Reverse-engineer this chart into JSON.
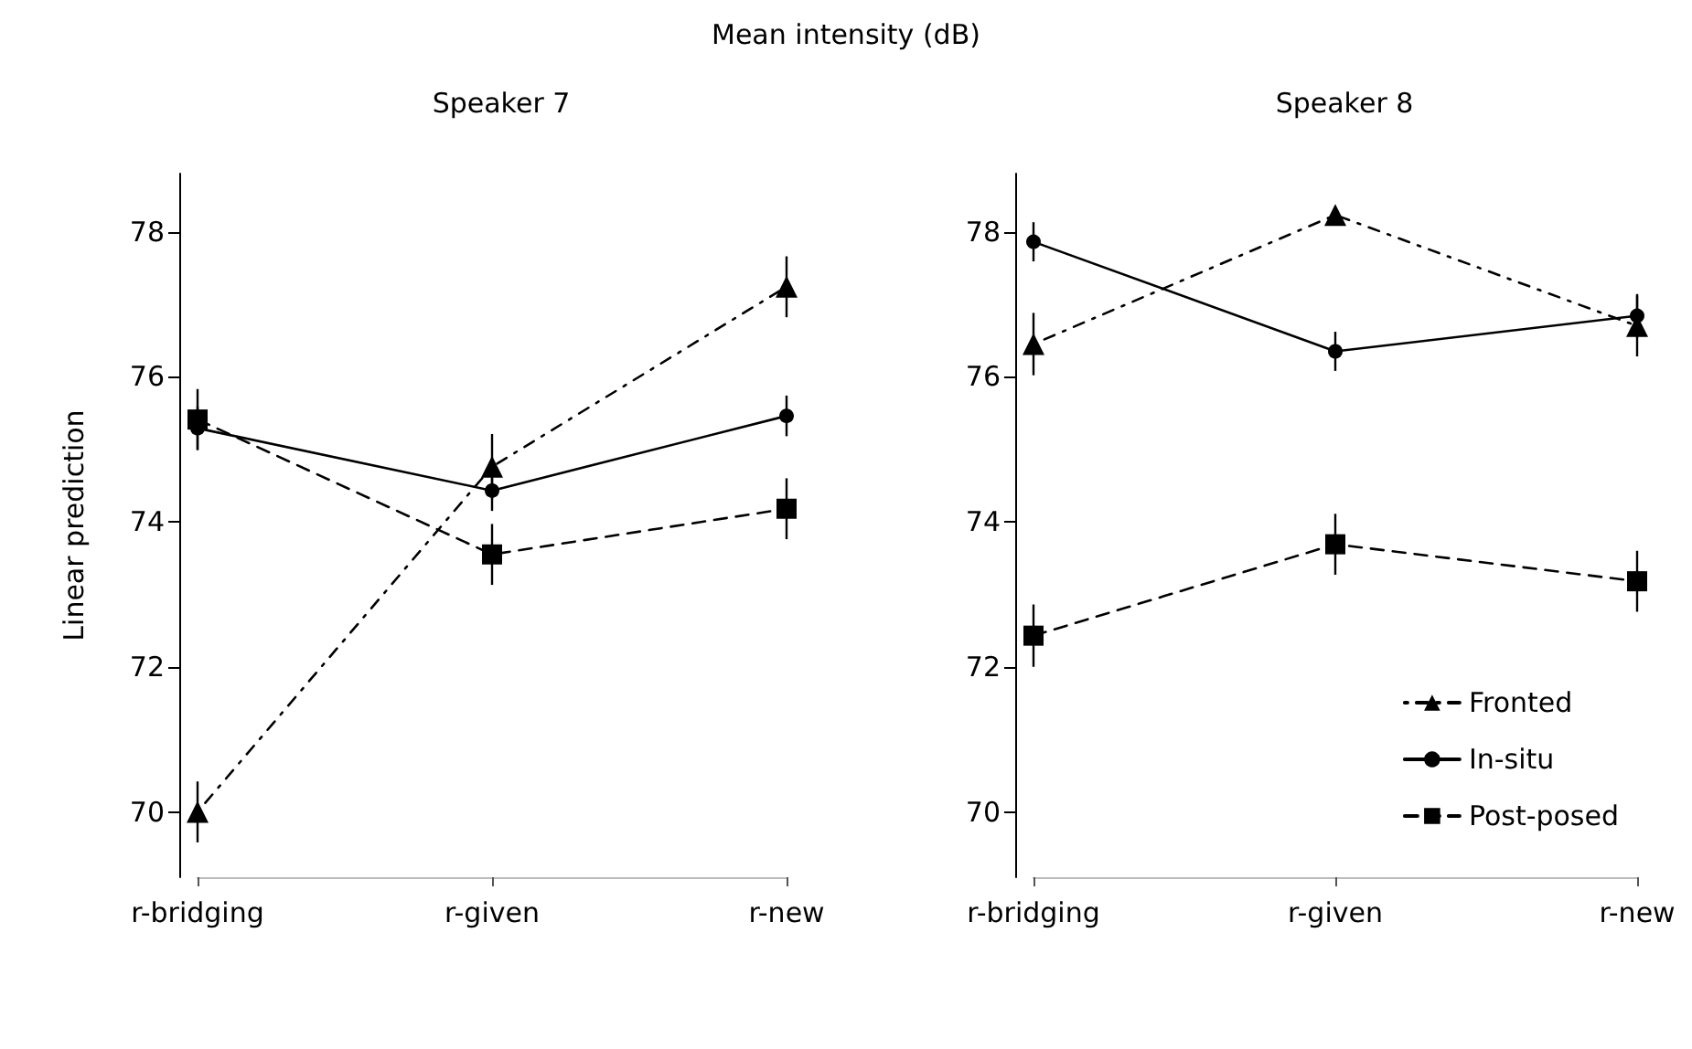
{
  "chart_data": [
    {
      "type": "line",
      "title": "Mean intensity (dB)",
      "subtitle": "Speaker 7",
      "ylabel": "Linear prediction",
      "categories": [
        "r-bridging",
        "r-given",
        "r-new"
      ],
      "ylim": [
        69.1,
        78.8
      ],
      "yticks": [
        70,
        72,
        74,
        76,
        78
      ],
      "grid": false,
      "legend": false,
      "series": [
        {
          "color": "#000000",
          "marker": "triangle",
          "line_style": "dotted",
          "values": [
            70.0,
            74.76,
            77.24
          ],
          "errors": [
            0.42,
            0.45,
            0.42
          ]
        },
        {
          "color": "#000000",
          "marker": "circle",
          "line_style": "solid",
          "values": [
            75.29,
            74.43,
            75.46
          ],
          "errors": [
            0.3,
            0.28,
            0.28
          ]
        },
        {
          "color": "#000000",
          "marker": "square",
          "line_style": "dashed",
          "values": [
            75.41,
            73.55,
            74.18
          ],
          "errors": [
            0.42,
            0.42,
            0.42
          ]
        }
      ]
    },
    {
      "type": "line",
      "subtitle": "Speaker 8",
      "categories": [
        "r-bridging",
        "r-given",
        "r-new"
      ],
      "ylim": [
        69.1,
        78.8
      ],
      "yticks": [
        70,
        72,
        74,
        76,
        78
      ],
      "grid": false,
      "legend": "bottom right",
      "series": [
        {
          "name": "Fronted",
          "color": "#000000",
          "marker": "triangle",
          "line_style": "dotted",
          "values": [
            76.45,
            78.23,
            76.7
          ],
          "errors": [
            0.43,
            null,
            0.42
          ]
        },
        {
          "name": "In-situ",
          "color": "#000000",
          "marker": "circle",
          "line_style": "solid",
          "values": [
            77.86,
            76.35,
            76.84
          ],
          "errors": [
            0.27,
            0.27,
            0.3
          ]
        },
        {
          "name": "Post-posed",
          "color": "#000000",
          "marker": "square",
          "line_style": "dashed",
          "values": [
            72.43,
            73.69,
            73.18
          ],
          "errors": [
            0.43,
            0.42,
            0.42
          ]
        }
      ]
    }
  ]
}
